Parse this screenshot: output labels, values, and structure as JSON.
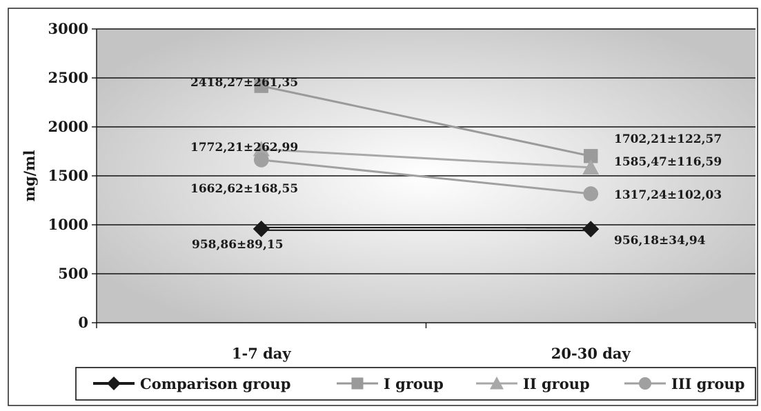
{
  "chart_data": {
    "type": "line",
    "title": "",
    "xlabel": "",
    "ylabel": "mg/ml",
    "ylim": [
      0,
      3000
    ],
    "yticks": [
      0,
      500,
      1000,
      1500,
      2000,
      2500,
      3000
    ],
    "categories": [
      "1-7 day",
      "20-30 day"
    ],
    "grid": true,
    "legend_position": "bottom",
    "series": [
      {
        "name": "Comparison group",
        "values": [
          958.86,
          956.18
        ],
        "labels": [
          "958,86±89,15",
          "956,18±34,94"
        ],
        "marker": "diamond",
        "color": "#1a1a1a"
      },
      {
        "name": "I group",
        "values": [
          2418.27,
          1702.21
        ],
        "labels": [
          "2418,27±261,35",
          "1702,21±122,57"
        ],
        "marker": "square",
        "color": "#9a9a9a"
      },
      {
        "name": "II group",
        "values": [
          1772.21,
          1585.47
        ],
        "labels": [
          "1772,21±262,99",
          "1585,47±116,59"
        ],
        "marker": "triangle",
        "color": "#a8a8a8"
      },
      {
        "name": "III group",
        "values": [
          1662.62,
          1317.24
        ],
        "labels": [
          "1662,62±168,55",
          "1317,24±102,03"
        ],
        "marker": "circle",
        "color": "#a0a0a0"
      }
    ]
  }
}
